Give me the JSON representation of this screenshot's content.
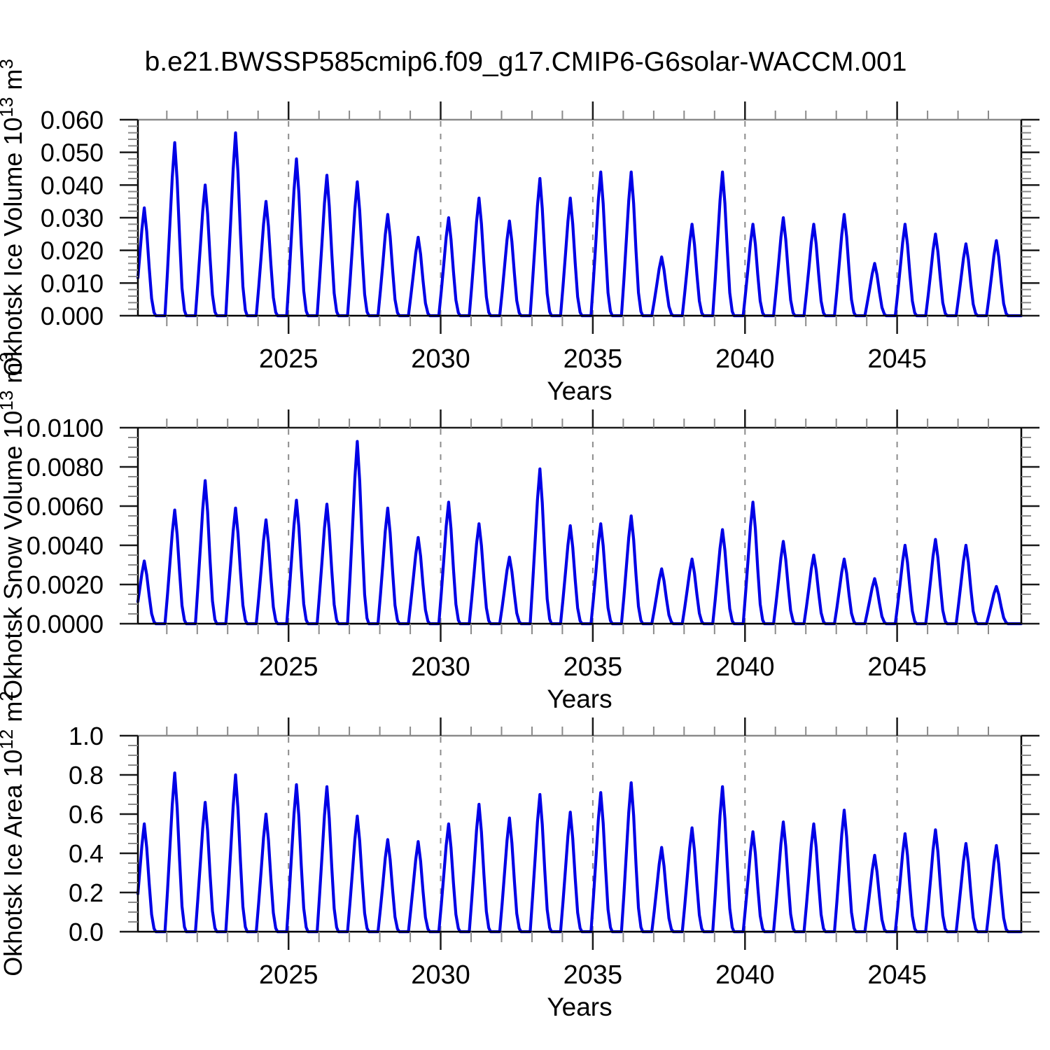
{
  "title": "b.e21.BWSSP585cmip6.f09_g17.CMIP6-G6solar-WACCM.001",
  "colors": {
    "line": "#0000e6",
    "dashed_gridline": "#8c8c8c",
    "axis": "#000000",
    "frame_top_gray": "#8a8a8a",
    "major_tick": "#1a1a1a",
    "minor_tick": "#8a8a8a",
    "text": "#000000"
  },
  "x_axis": {
    "label": "Years",
    "major_ticks": [
      2025,
      2030,
      2035,
      2040,
      2045
    ],
    "minor_tick_step_years": 1,
    "range": [
      2020.05,
      2049.08
    ]
  },
  "chart_data": [
    {
      "type": "line",
      "name": "okhotsk-ice-volume",
      "ylabel": {
        "prefix": "Okhotsk Ice Volume 10",
        "exp": "13",
        "unit": " m",
        "unit_exp": "3"
      },
      "xlabel": "Years",
      "ylim": [
        0,
        0.06
      ],
      "ytick_major": 0.01,
      "ytick_minor": 0.002,
      "ytick_decimals": 3,
      "grid": "vertical-dashed",
      "legend": "none",
      "summer_minimum": 0.0,
      "years": [
        2020,
        2021,
        2022,
        2023,
        2024,
        2025,
        2026,
        2027,
        2028,
        2029,
        2030,
        2031,
        2032,
        2033,
        2034,
        2035,
        2036,
        2037,
        2038,
        2039,
        2040,
        2041,
        2042,
        2043,
        2044,
        2045,
        2046,
        2047,
        2048
      ],
      "winter_peak_maxima": [
        0.033,
        0.053,
        0.04,
        0.056,
        0.035,
        0.048,
        0.043,
        0.041,
        0.031,
        0.024,
        0.03,
        0.036,
        0.029,
        0.042,
        0.036,
        0.044,
        0.044,
        0.018,
        0.028,
        0.044,
        0.028,
        0.03,
        0.028,
        0.031,
        0.016,
        0.028,
        0.025,
        0.022,
        0.023
      ]
    },
    {
      "type": "line",
      "name": "okhotsk-snow-volume",
      "ylabel": {
        "prefix": "Okhotsk Snow Volume 10",
        "exp": "13",
        "unit": " m",
        "unit_exp": "3"
      },
      "xlabel": "Years",
      "ylim": [
        0,
        0.01
      ],
      "ytick_major": 0.002,
      "ytick_minor": 0.0005,
      "ytick_decimals": 4,
      "grid": "vertical-dashed",
      "legend": "none",
      "summer_minimum": 0.0,
      "years": [
        2020,
        2021,
        2022,
        2023,
        2024,
        2025,
        2026,
        2027,
        2028,
        2029,
        2030,
        2031,
        2032,
        2033,
        2034,
        2035,
        2036,
        2037,
        2038,
        2039,
        2040,
        2041,
        2042,
        2043,
        2044,
        2045,
        2046,
        2047,
        2048
      ],
      "winter_peak_maxima": [
        0.0032,
        0.0058,
        0.0073,
        0.0059,
        0.0053,
        0.0063,
        0.0061,
        0.0093,
        0.0059,
        0.0044,
        0.0062,
        0.0051,
        0.0034,
        0.0079,
        0.005,
        0.0051,
        0.0055,
        0.0028,
        0.0033,
        0.0048,
        0.0062,
        0.0042,
        0.0035,
        0.0033,
        0.0023,
        0.004,
        0.0043,
        0.004,
        0.0019
      ]
    },
    {
      "type": "line",
      "name": "okhotsk-ice-area",
      "ylabel": {
        "prefix": "Okhotsk Ice Area 10",
        "exp": "12",
        "unit": " m",
        "unit_exp": "2"
      },
      "xlabel": "Years",
      "ylim": [
        0,
        1.0
      ],
      "ytick_major": 0.2,
      "ytick_minor": 0.05,
      "ytick_decimals": 1,
      "grid": "vertical-dashed",
      "legend": "none",
      "summer_minimum": 0.0,
      "years": [
        2020,
        2021,
        2022,
        2023,
        2024,
        2025,
        2026,
        2027,
        2028,
        2029,
        2030,
        2031,
        2032,
        2033,
        2034,
        2035,
        2036,
        2037,
        2038,
        2039,
        2040,
        2041,
        2042,
        2043,
        2044,
        2045,
        2046,
        2047,
        2048
      ],
      "winter_peak_maxima": [
        0.55,
        0.81,
        0.66,
        0.8,
        0.6,
        0.75,
        0.74,
        0.59,
        0.47,
        0.46,
        0.55,
        0.65,
        0.58,
        0.7,
        0.61,
        0.71,
        0.76,
        0.43,
        0.53,
        0.74,
        0.51,
        0.56,
        0.55,
        0.62,
        0.39,
        0.5,
        0.52,
        0.45,
        0.44
      ]
    }
  ]
}
